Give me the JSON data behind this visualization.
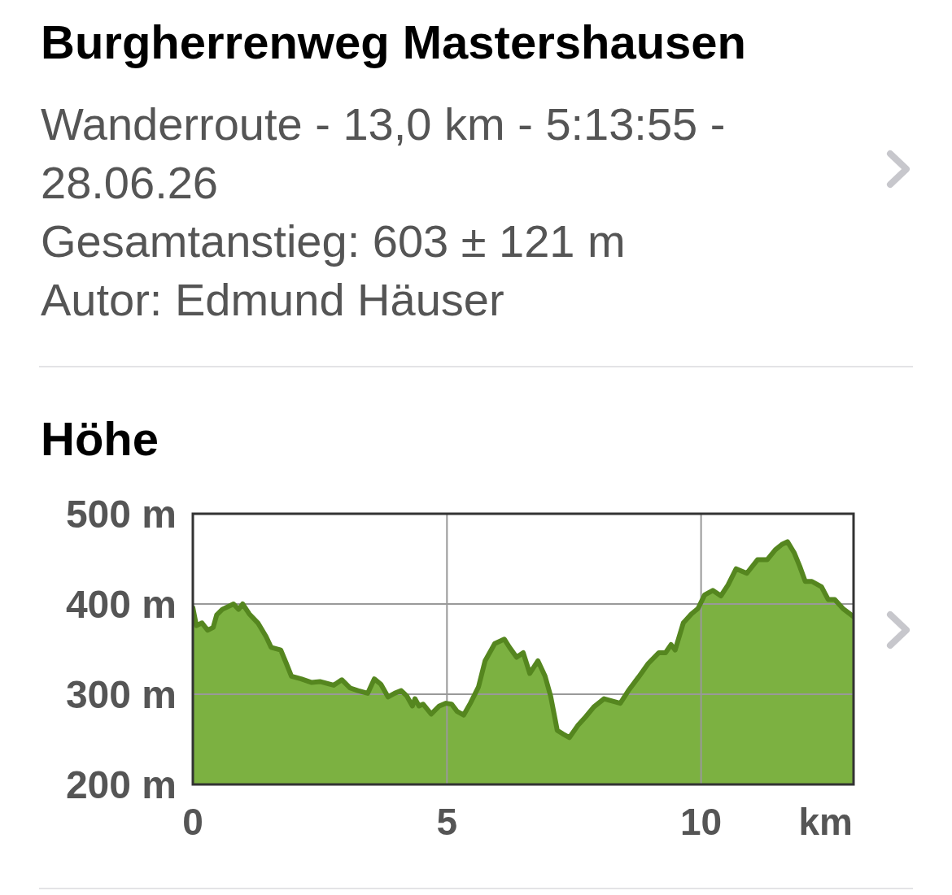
{
  "chart_data": [
    {
      "type": "other",
      "title": "Burgherrenweg Mastershausen",
      "subtitle": "Wanderroute - 13,0 km - 5:13:55 - 28.06.26",
      "annotations": [
        "Gesamtanstieg: 603 ± 121 m",
        "Autor: Edmund Häuser"
      ]
    },
    {
      "type": "area",
      "title": "Höhe",
      "xlabel": "km",
      "color": "#7cb141",
      "x": [
        0,
        0.07,
        0.18,
        0.29,
        0.4,
        0.47,
        0.58,
        0.8,
        0.9,
        0.98,
        1.11,
        1.28,
        1.44,
        1.54,
        1.73,
        1.84,
        1.94,
        2.13,
        2.34,
        2.5,
        2.77,
        2.93,
        3.09,
        3.25,
        3.44,
        3.57,
        3.7,
        3.84,
        3.97,
        4.1,
        4.21,
        4.32,
        4.37,
        4.45,
        4.53,
        4.69,
        4.85,
        4.98,
        5.09,
        5.2,
        5.33,
        5.46,
        5.62,
        5.75,
        5.94,
        6.13,
        6.23,
        6.37,
        6.5,
        6.63,
        6.79,
        6.93,
        7.04,
        7.17,
        7.28,
        7.41,
        7.57,
        7.73,
        7.89,
        8.09,
        8.41,
        8.57,
        8.77,
        8.96,
        9.17,
        9.3,
        9.41,
        9.49,
        9.65,
        9.81,
        9.94,
        10.07,
        10.23,
        10.39,
        10.53,
        10.69,
        10.9,
        11.11,
        11.3,
        11.46,
        11.59,
        11.7,
        11.83,
        11.94,
        12.05,
        12.18,
        12.37,
        12.5,
        12.63,
        12.79,
        13
      ],
      "values": [
        396,
        376,
        379,
        371,
        374,
        388,
        394,
        400,
        394,
        400,
        389,
        379,
        364,
        352,
        349,
        334,
        320,
        317,
        313,
        314,
        310,
        316,
        307,
        304,
        301,
        317,
        311,
        297,
        301,
        304,
        298,
        287,
        295,
        287,
        289,
        278,
        287,
        290,
        289,
        281,
        277,
        290,
        308,
        337,
        356,
        361,
        352,
        341,
        346,
        323,
        337,
        320,
        298,
        260,
        256,
        252,
        265,
        275,
        286,
        295,
        290,
        304,
        319,
        334,
        346,
        346,
        355,
        349,
        379,
        389,
        395,
        410,
        415,
        409,
        421,
        439,
        434,
        449,
        449,
        460,
        466,
        469,
        457,
        442,
        425,
        425,
        419,
        405,
        405,
        395,
        386
      ],
      "xlim": [
        0,
        13
      ],
      "xticks": [
        0,
        5,
        10
      ],
      "ylim": [
        200,
        500
      ],
      "yticks": [
        {
          "value": 200,
          "label": "200 m"
        },
        {
          "value": 300,
          "label": "300 m"
        },
        {
          "value": 400,
          "label": "400 m"
        },
        {
          "value": 500,
          "label": "500 m"
        }
      ],
      "grid": true
    }
  ]
}
